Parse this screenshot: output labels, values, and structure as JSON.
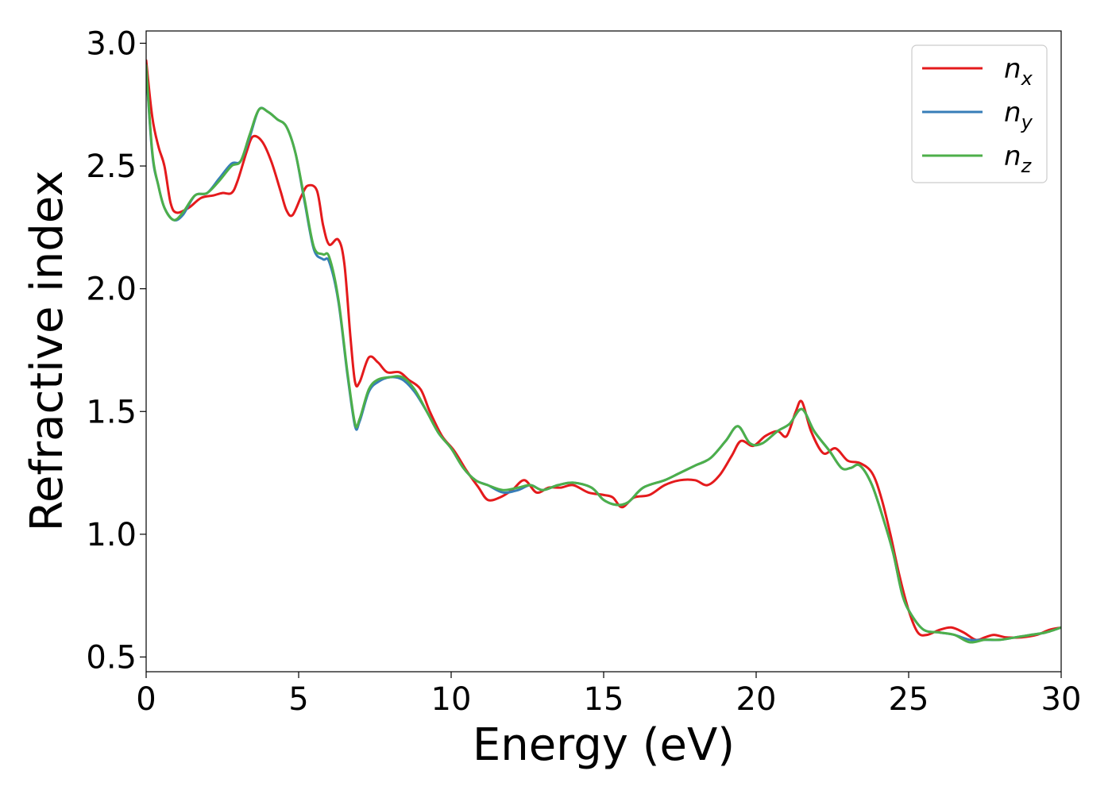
{
  "chart_data": {
    "type": "line",
    "title": "",
    "xlabel": "Energy (eV)",
    "ylabel": "Refractive index",
    "xlim": [
      0,
      30
    ],
    "ylim": [
      0.44,
      3.05
    ],
    "xticks": [
      0,
      5,
      10,
      15,
      20,
      25,
      30
    ],
    "xtick_labels": [
      "0",
      "5",
      "10",
      "15",
      "20",
      "25",
      "30"
    ],
    "yticks": [
      0.5,
      1.0,
      1.5,
      2.0,
      2.5,
      3.0
    ],
    "ytick_labels": [
      "0.5",
      "1.0",
      "1.5",
      "2.0",
      "2.5",
      "3.0"
    ],
    "grid": false,
    "legend_position": "top-right",
    "series": [
      {
        "name": "n",
        "subscript": "x",
        "color": "#e41a1c",
        "points": [
          [
            0,
            2.93
          ],
          [
            0.2,
            2.7
          ],
          [
            0.4,
            2.58
          ],
          [
            0.6,
            2.5
          ],
          [
            0.8,
            2.35
          ],
          [
            1.0,
            2.31
          ],
          [
            1.4,
            2.33
          ],
          [
            1.8,
            2.37
          ],
          [
            2.2,
            2.38
          ],
          [
            2.5,
            2.39
          ],
          [
            2.8,
            2.39
          ],
          [
            3.0,
            2.44
          ],
          [
            3.3,
            2.56
          ],
          [
            3.5,
            2.62
          ],
          [
            3.8,
            2.6
          ],
          [
            4.1,
            2.52
          ],
          [
            4.4,
            2.4
          ],
          [
            4.6,
            2.32
          ],
          [
            4.8,
            2.3
          ],
          [
            5.1,
            2.38
          ],
          [
            5.3,
            2.42
          ],
          [
            5.6,
            2.4
          ],
          [
            5.8,
            2.26
          ],
          [
            6.0,
            2.18
          ],
          [
            6.3,
            2.2
          ],
          [
            6.5,
            2.1
          ],
          [
            6.7,
            1.8
          ],
          [
            6.85,
            1.62
          ],
          [
            7.0,
            1.62
          ],
          [
            7.3,
            1.72
          ],
          [
            7.6,
            1.7
          ],
          [
            7.9,
            1.66
          ],
          [
            8.3,
            1.66
          ],
          [
            8.6,
            1.63
          ],
          [
            9.0,
            1.59
          ],
          [
            9.3,
            1.5
          ],
          [
            9.7,
            1.4
          ],
          [
            10.1,
            1.34
          ],
          [
            10.5,
            1.26
          ],
          [
            10.9,
            1.19
          ],
          [
            11.2,
            1.14
          ],
          [
            11.6,
            1.15
          ],
          [
            12.0,
            1.18
          ],
          [
            12.4,
            1.22
          ],
          [
            12.8,
            1.17
          ],
          [
            13.2,
            1.19
          ],
          [
            13.6,
            1.19
          ],
          [
            14.0,
            1.2
          ],
          [
            14.5,
            1.17
          ],
          [
            15.0,
            1.16
          ],
          [
            15.3,
            1.15
          ],
          [
            15.6,
            1.11
          ],
          [
            16.0,
            1.15
          ],
          [
            16.5,
            1.16
          ],
          [
            17.0,
            1.2
          ],
          [
            17.5,
            1.22
          ],
          [
            18.0,
            1.22
          ],
          [
            18.4,
            1.2
          ],
          [
            18.8,
            1.24
          ],
          [
            19.2,
            1.32
          ],
          [
            19.5,
            1.38
          ],
          [
            19.9,
            1.36
          ],
          [
            20.3,
            1.4
          ],
          [
            20.7,
            1.42
          ],
          [
            21.0,
            1.4
          ],
          [
            21.3,
            1.5
          ],
          [
            21.5,
            1.54
          ],
          [
            21.8,
            1.42
          ],
          [
            22.2,
            1.33
          ],
          [
            22.6,
            1.35
          ],
          [
            23.0,
            1.3
          ],
          [
            23.4,
            1.29
          ],
          [
            23.8,
            1.25
          ],
          [
            24.1,
            1.15
          ],
          [
            24.4,
            1.0
          ],
          [
            24.7,
            0.83
          ],
          [
            25.0,
            0.69
          ],
          [
            25.3,
            0.6
          ],
          [
            25.6,
            0.59
          ],
          [
            26.0,
            0.61
          ],
          [
            26.4,
            0.62
          ],
          [
            26.8,
            0.6
          ],
          [
            27.2,
            0.57
          ],
          [
            27.5,
            0.58
          ],
          [
            27.8,
            0.59
          ],
          [
            28.2,
            0.58
          ],
          [
            28.7,
            0.58
          ],
          [
            29.2,
            0.59
          ],
          [
            29.6,
            0.61
          ],
          [
            30.0,
            0.62
          ]
        ]
      },
      {
        "name": "n",
        "subscript": "y",
        "color": "#377eb8",
        "points": [
          [
            0,
            2.9
          ],
          [
            0.2,
            2.55
          ],
          [
            0.4,
            2.42
          ],
          [
            0.6,
            2.33
          ],
          [
            0.9,
            2.28
          ],
          [
            1.2,
            2.3
          ],
          [
            1.6,
            2.38
          ],
          [
            2.0,
            2.39
          ],
          [
            2.4,
            2.45
          ],
          [
            2.8,
            2.51
          ],
          [
            3.1,
            2.52
          ],
          [
            3.4,
            2.62
          ],
          [
            3.7,
            2.73
          ],
          [
            4.0,
            2.72
          ],
          [
            4.3,
            2.69
          ],
          [
            4.6,
            2.66
          ],
          [
            4.9,
            2.55
          ],
          [
            5.2,
            2.35
          ],
          [
            5.5,
            2.16
          ],
          [
            5.8,
            2.12
          ],
          [
            6.0,
            2.11
          ],
          [
            6.3,
            1.95
          ],
          [
            6.6,
            1.65
          ],
          [
            6.85,
            1.44
          ],
          [
            7.0,
            1.46
          ],
          [
            7.3,
            1.58
          ],
          [
            7.6,
            1.62
          ],
          [
            8.0,
            1.64
          ],
          [
            8.4,
            1.63
          ],
          [
            8.8,
            1.58
          ],
          [
            9.2,
            1.5
          ],
          [
            9.6,
            1.41
          ],
          [
            10.0,
            1.35
          ],
          [
            10.4,
            1.27
          ],
          [
            10.8,
            1.22
          ],
          [
            11.2,
            1.2
          ],
          [
            11.7,
            1.17
          ],
          [
            12.2,
            1.18
          ],
          [
            12.6,
            1.2
          ],
          [
            13.0,
            1.18
          ],
          [
            13.5,
            1.2
          ],
          [
            14.0,
            1.21
          ],
          [
            14.6,
            1.19
          ],
          [
            15.0,
            1.14
          ],
          [
            15.4,
            1.12
          ],
          [
            15.8,
            1.13
          ],
          [
            16.3,
            1.19
          ],
          [
            17.0,
            1.22
          ],
          [
            17.5,
            1.25
          ],
          [
            18.0,
            1.28
          ],
          [
            18.5,
            1.31
          ],
          [
            19.0,
            1.38
          ],
          [
            19.4,
            1.44
          ],
          [
            19.8,
            1.37
          ],
          [
            20.2,
            1.37
          ],
          [
            20.7,
            1.42
          ],
          [
            21.1,
            1.45
          ],
          [
            21.5,
            1.51
          ],
          [
            21.9,
            1.42
          ],
          [
            22.4,
            1.34
          ],
          [
            22.8,
            1.27
          ],
          [
            23.1,
            1.27
          ],
          [
            23.4,
            1.28
          ],
          [
            23.8,
            1.2
          ],
          [
            24.2,
            1.05
          ],
          [
            24.5,
            0.92
          ],
          [
            24.8,
            0.75
          ],
          [
            25.1,
            0.67
          ],
          [
            25.5,
            0.61
          ],
          [
            26.0,
            0.6
          ],
          [
            26.5,
            0.59
          ],
          [
            27.0,
            0.57
          ],
          [
            27.5,
            0.57
          ],
          [
            28.0,
            0.57
          ],
          [
            28.5,
            0.58
          ],
          [
            29.0,
            0.59
          ],
          [
            29.5,
            0.6
          ],
          [
            30.0,
            0.62
          ]
        ]
      },
      {
        "name": "n",
        "subscript": "z",
        "color": "#4daf4a",
        "points": [
          [
            0,
            2.91
          ],
          [
            0.2,
            2.56
          ],
          [
            0.4,
            2.42
          ],
          [
            0.6,
            2.33
          ],
          [
            0.9,
            2.28
          ],
          [
            1.2,
            2.31
          ],
          [
            1.6,
            2.38
          ],
          [
            2.0,
            2.39
          ],
          [
            2.4,
            2.44
          ],
          [
            2.8,
            2.5
          ],
          [
            3.1,
            2.52
          ],
          [
            3.4,
            2.63
          ],
          [
            3.7,
            2.73
          ],
          [
            4.0,
            2.72
          ],
          [
            4.3,
            2.69
          ],
          [
            4.6,
            2.66
          ],
          [
            4.9,
            2.55
          ],
          [
            5.2,
            2.36
          ],
          [
            5.5,
            2.17
          ],
          [
            5.8,
            2.14
          ],
          [
            6.0,
            2.13
          ],
          [
            6.3,
            1.96
          ],
          [
            6.6,
            1.66
          ],
          [
            6.85,
            1.45
          ],
          [
            7.0,
            1.47
          ],
          [
            7.3,
            1.59
          ],
          [
            7.6,
            1.63
          ],
          [
            8.0,
            1.64
          ],
          [
            8.4,
            1.64
          ],
          [
            8.8,
            1.59
          ],
          [
            9.2,
            1.5
          ],
          [
            9.6,
            1.41
          ],
          [
            10.0,
            1.35
          ],
          [
            10.4,
            1.27
          ],
          [
            10.8,
            1.22
          ],
          [
            11.2,
            1.2
          ],
          [
            11.7,
            1.18
          ],
          [
            12.2,
            1.19
          ],
          [
            12.6,
            1.2
          ],
          [
            13.0,
            1.18
          ],
          [
            13.5,
            1.2
          ],
          [
            14.0,
            1.21
          ],
          [
            14.6,
            1.19
          ],
          [
            15.0,
            1.14
          ],
          [
            15.4,
            1.12
          ],
          [
            15.8,
            1.13
          ],
          [
            16.3,
            1.19
          ],
          [
            17.0,
            1.22
          ],
          [
            17.5,
            1.25
          ],
          [
            18.0,
            1.28
          ],
          [
            18.5,
            1.31
          ],
          [
            19.0,
            1.38
          ],
          [
            19.4,
            1.44
          ],
          [
            19.8,
            1.37
          ],
          [
            20.2,
            1.37
          ],
          [
            20.7,
            1.42
          ],
          [
            21.1,
            1.45
          ],
          [
            21.5,
            1.51
          ],
          [
            21.9,
            1.42
          ],
          [
            22.4,
            1.34
          ],
          [
            22.8,
            1.27
          ],
          [
            23.1,
            1.27
          ],
          [
            23.4,
            1.28
          ],
          [
            23.8,
            1.2
          ],
          [
            24.2,
            1.05
          ],
          [
            24.5,
            0.92
          ],
          [
            24.8,
            0.75
          ],
          [
            25.1,
            0.67
          ],
          [
            25.5,
            0.61
          ],
          [
            26.0,
            0.6
          ],
          [
            26.5,
            0.59
          ],
          [
            27.0,
            0.56
          ],
          [
            27.5,
            0.57
          ],
          [
            28.0,
            0.57
          ],
          [
            28.5,
            0.58
          ],
          [
            29.0,
            0.59
          ],
          [
            29.5,
            0.6
          ],
          [
            30.0,
            0.62
          ]
        ]
      }
    ]
  }
}
